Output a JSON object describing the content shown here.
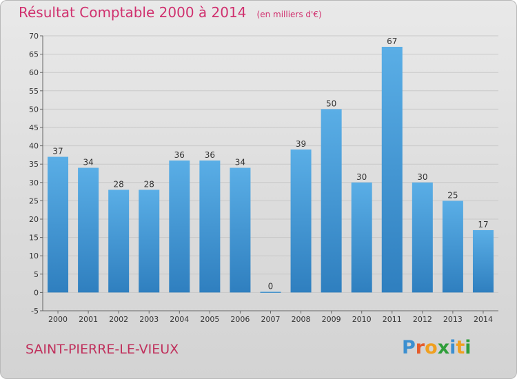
{
  "header": {
    "title": "Résultat Comptable 2000 à 2014",
    "unit": "(en milliers d'€)"
  },
  "footer": {
    "place": "SAINT-PIERRE-LE-VIEUX",
    "logo": "Proxiti"
  },
  "colors": {
    "bar": "#4b9bd8",
    "title": "#d0306e",
    "place": "#c0305c"
  },
  "chart_data": {
    "type": "bar",
    "title": "Résultat Comptable 2000 à 2014",
    "subtitle": "(en milliers d'€)",
    "categories": [
      "2000",
      "2001",
      "2002",
      "2003",
      "2004",
      "2005",
      "2006",
      "2007",
      "2008",
      "2009",
      "2010",
      "2011",
      "2012",
      "2013",
      "2014"
    ],
    "values": [
      37,
      34,
      28,
      28,
      36,
      36,
      34,
      0,
      39,
      50,
      30,
      67,
      30,
      25,
      17
    ],
    "ylim": [
      -5,
      70
    ],
    "yticks": [
      -5,
      0,
      5,
      10,
      15,
      20,
      25,
      30,
      35,
      40,
      45,
      50,
      55,
      60,
      65,
      70
    ],
    "grid": true,
    "legend": "none"
  }
}
